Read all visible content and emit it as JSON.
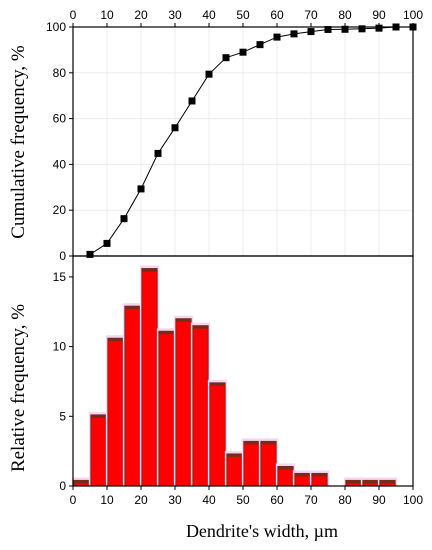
{
  "chart_data": [
    {
      "type": "line",
      "ylabel": "Cumulative frequency, %",
      "xlim": [
        0,
        100
      ],
      "ylim": [
        0,
        100
      ],
      "xticks": [
        0,
        10,
        20,
        30,
        40,
        50,
        60,
        70,
        80,
        90,
        100
      ],
      "yticks": [
        0,
        20,
        40,
        60,
        80,
        100
      ],
      "x_axis_position": "top",
      "marker": "square",
      "color": "#000000",
      "x": [
        5,
        10,
        15,
        20,
        25,
        30,
        35,
        40,
        45,
        50,
        55,
        60,
        65,
        70,
        75,
        80,
        85,
        90,
        95,
        100
      ],
      "y": [
        0.7,
        5.5,
        16.3,
        29.3,
        44.8,
        56,
        67.7,
        79.4,
        86.6,
        89,
        92.3,
        95.6,
        97,
        98,
        98.9,
        99,
        99.2,
        99.5,
        100,
        100
      ]
    },
    {
      "type": "bar",
      "ylabel": "Relative frequency, %",
      "xlabel": "Dendrite's width, µm",
      "xlim": [
        0,
        100
      ],
      "ylim": [
        0,
        16.5
      ],
      "xticks": [
        0,
        10,
        20,
        30,
        40,
        50,
        60,
        70,
        80,
        90,
        100
      ],
      "yticks": [
        0,
        5,
        10,
        15
      ],
      "bar_width": 4.5,
      "bar_color": "#ff0000",
      "edge_color": "#7a2a1a",
      "x": [
        0,
        5,
        10,
        15,
        20,
        25,
        30,
        35,
        40,
        45,
        50,
        55,
        60,
        65,
        70,
        75,
        80,
        85,
        90,
        95
      ],
      "values": [
        0.4,
        5.1,
        10.6,
        12.9,
        15.6,
        11.1,
        12,
        11.5,
        7.4,
        2.3,
        3.2,
        3.2,
        1.4,
        0.9,
        0.9,
        0,
        0.4,
        0.4,
        0.4,
        0
      ]
    }
  ]
}
